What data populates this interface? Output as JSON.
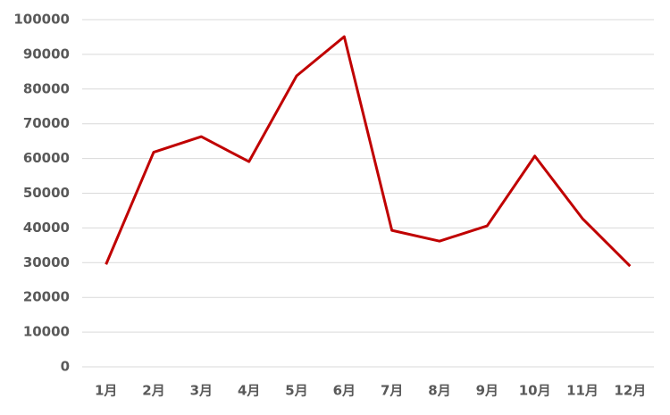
{
  "chart_data": {
    "type": "line",
    "categories": [
      "1月",
      "2月",
      "3月",
      "4月",
      "5月",
      "6月",
      "7月",
      "8月",
      "9月",
      "10月",
      "11月",
      "12月"
    ],
    "values": [
      29500,
      61800,
      66300,
      59100,
      83800,
      95100,
      39300,
      36200,
      40600,
      60700,
      42700,
      29000
    ],
    "color": "#c00000",
    "ylim": [
      0,
      100000
    ],
    "yticks": [
      0,
      10000,
      20000,
      30000,
      40000,
      50000,
      60000,
      70000,
      80000,
      90000,
      100000
    ],
    "grid": true
  }
}
